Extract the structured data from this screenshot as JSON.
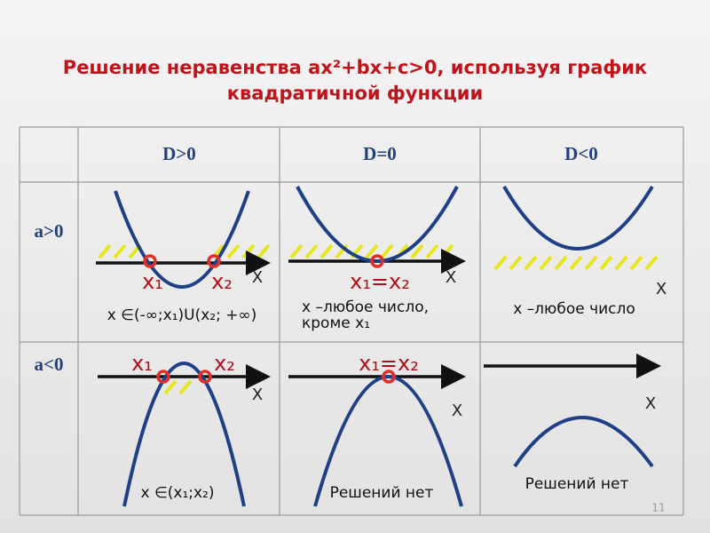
{
  "title": [
    "Решение неравенства ax²+bx+c>0, используя график",
    "квадратичной функции"
  ],
  "table": {
    "columns": [
      "D>0",
      "D=0",
      "D<0"
    ],
    "rows": [
      {
        "label": "a>0",
        "cells": [
          {
            "points": [
              "x₁",
              "x₂"
            ],
            "axis": "X",
            "answer": [
              "x ∈(-∞;x₁)U(x₂; +∞)"
            ]
          },
          {
            "points": [
              "x₁=x₂"
            ],
            "axis": "X",
            "answer": [
              "x –любое число,",
              "кроме x₁"
            ]
          },
          {
            "axis": "X",
            "answer": [
              "x –любое число"
            ]
          }
        ]
      },
      {
        "label": "a<0",
        "cells": [
          {
            "points": [
              "x₁",
              "x₂"
            ],
            "axis": "X",
            "answer": [
              "x ∈(x₁;x₂)"
            ]
          },
          {
            "points": [
              "x₁=x₂"
            ],
            "axis": "X",
            "answer": [
              "Решений нет"
            ]
          },
          {
            "axis": "X",
            "answer": [
              "Решений нет"
            ]
          }
        ]
      }
    ]
  },
  "page_number": "11"
}
